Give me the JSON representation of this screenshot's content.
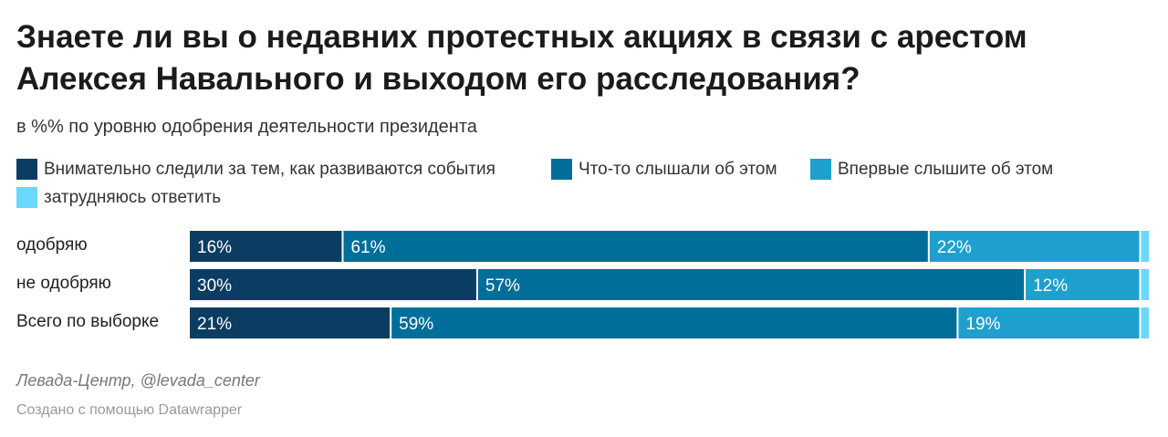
{
  "header": {
    "title": "Знаете ли вы о недавних протестных акциях в связи с арестом Алексея Навального и выходом его расследования?",
    "subtitle": "в %% по уровню одобрения деятельности президента"
  },
  "legend": [
    {
      "label": "Внимательно следили за тем, как развиваются события",
      "color": "#0b3d62"
    },
    {
      "label": "Что-то слышали об этом",
      "color": "#006e9a"
    },
    {
      "label": "Впервые слышите об этом",
      "color": "#1ea0cf"
    },
    {
      "label": "затрудняюсь ответить",
      "color": "#6bd7fa"
    }
  ],
  "chart_data": {
    "type": "bar",
    "orientation": "horizontal",
    "stacked": true,
    "categories": [
      "одобряю",
      "не одобряю",
      "Всего по выборке"
    ],
    "series": [
      {
        "name": "Внимательно следили за тем, как развиваются события",
        "values": [
          16,
          30,
          21
        ],
        "color": "#0b3d62"
      },
      {
        "name": "Что-то слышали об этом",
        "values": [
          61,
          57,
          59
        ],
        "color": "#006e9a"
      },
      {
        "name": "Впервые слышите об этом",
        "values": [
          22,
          12,
          19
        ],
        "color": "#1ea0cf"
      },
      {
        "name": "затрудняюсь ответить",
        "values": [
          1,
          1,
          1
        ],
        "color": "#6bd7fa"
      }
    ],
    "data_labels": [
      [
        "16%",
        "30%",
        "21%"
      ],
      [
        "61%",
        "57%",
        "59%"
      ],
      [
        "22%",
        "12%",
        "19%"
      ],
      [
        "",
        "",
        ""
      ]
    ],
    "xlim": [
      0,
      100
    ],
    "legend_position": "top"
  },
  "footer": {
    "source": "Левада-Центр, @levada_center",
    "credit": "Создано с помощью Datawrapper"
  }
}
